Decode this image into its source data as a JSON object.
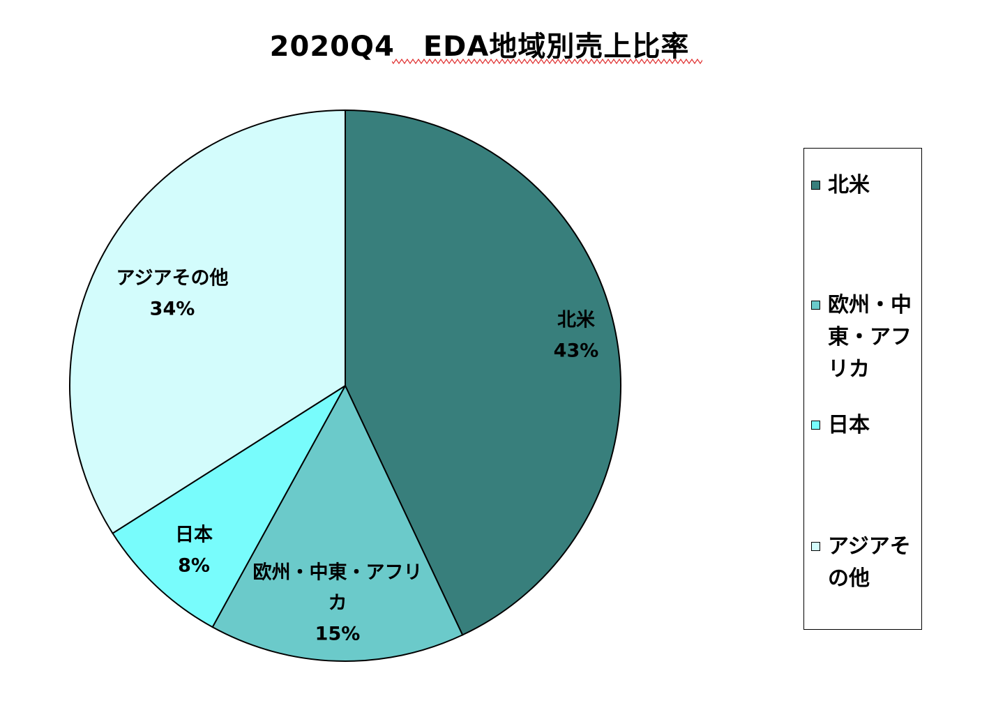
{
  "chart_data": {
    "type": "pie",
    "title": "2020Q4　EDA地域別売上比率",
    "slices": [
      {
        "name": "北米",
        "value": 43,
        "label": "43%",
        "color": "#387F7C"
      },
      {
        "name": "欧州・中東・アフリカ",
        "value": 15,
        "label": "15%",
        "color": "#6BCACA"
      },
      {
        "name": "日本",
        "value": 8,
        "label": "8%",
        "color": "#78FCFC"
      },
      {
        "name": "アジアその他",
        "value": 34,
        "label": "34%",
        "color": "#D3FCFC"
      }
    ],
    "legend_position": "right",
    "start_angle": "12 o'clock",
    "direction": "clockwise"
  }
}
